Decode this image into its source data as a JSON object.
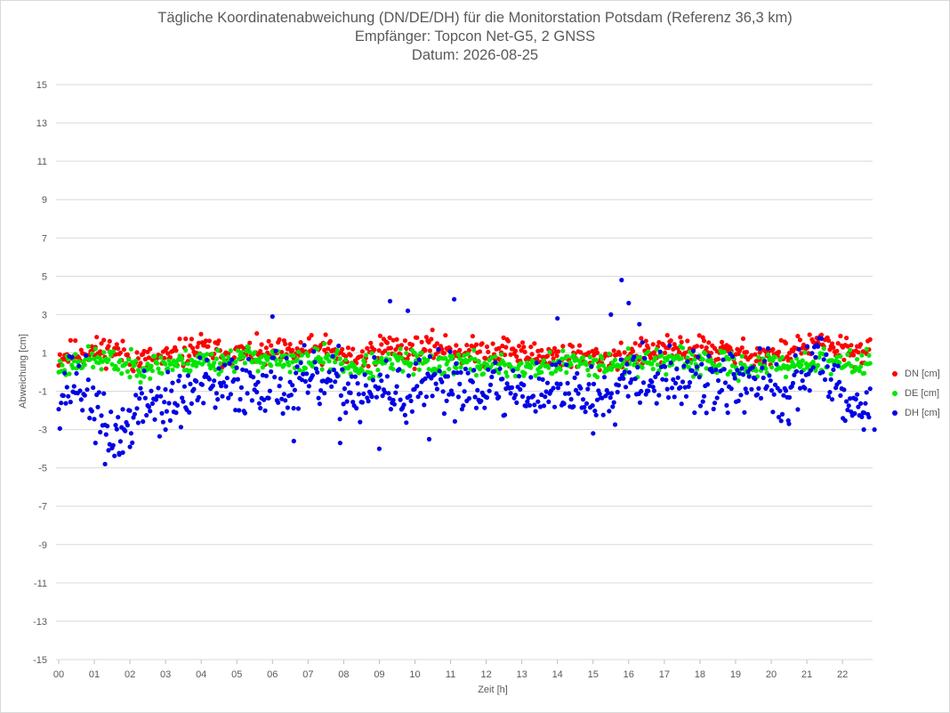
{
  "chart_data": {
    "type": "scatter",
    "title_lines": [
      "Tägliche Koordinatenabweichung (DN/DE/DH) für die Monitorstation Potsdam (Referenz 36,3 km)",
      "Empfänger: Topcon Net-G5, 2 GNSS",
      "Datum: 2026-08-25"
    ],
    "xlabel": "Zeit [h]",
    "ylabel": "Abweichung [cm]",
    "ylim": [
      -15,
      15
    ],
    "xlim": [
      0,
      22.8
    ],
    "y_ticks": [
      "15",
      "13",
      "11",
      "9",
      "7",
      "5",
      "3",
      "1",
      "-1",
      "-3",
      "-5",
      "-7",
      "-9",
      "-11",
      "-13",
      "-15"
    ],
    "x_ticks": [
      "00",
      "01",
      "02",
      "03",
      "04",
      "05",
      "06",
      "07",
      "08",
      "09",
      "10",
      "11",
      "12",
      "13",
      "14",
      "15",
      "16",
      "17",
      "18",
      "19",
      "20",
      "21",
      "22"
    ],
    "grid": true,
    "legend_position": "right",
    "sample_interval_h": 0.0333,
    "series": [
      {
        "name": "DN [cm]",
        "color": "#ff0000",
        "anchors": [
          [
            0.0,
            0.8
          ],
          [
            0.5,
            1.0
          ],
          [
            1.0,
            1.1
          ],
          [
            1.5,
            1.2
          ],
          [
            2.0,
            0.7
          ],
          [
            2.5,
            0.6
          ],
          [
            3.0,
            0.7
          ],
          [
            3.5,
            1.0
          ],
          [
            4.0,
            1.3
          ],
          [
            4.5,
            1.0
          ],
          [
            5.0,
            0.9
          ],
          [
            5.5,
            1.0
          ],
          [
            6.0,
            0.9
          ],
          [
            6.5,
            1.0
          ],
          [
            7.0,
            1.1
          ],
          [
            7.5,
            1.2
          ],
          [
            8.0,
            0.8
          ],
          [
            8.5,
            0.6
          ],
          [
            9.0,
            1.3
          ],
          [
            9.5,
            1.3
          ],
          [
            10.0,
            1.1
          ],
          [
            10.5,
            1.3
          ],
          [
            11.0,
            1.2
          ],
          [
            11.5,
            1.0
          ],
          [
            12.0,
            1.1
          ],
          [
            12.5,
            1.2
          ],
          [
            13.0,
            0.9
          ],
          [
            13.5,
            0.9
          ],
          [
            14.0,
            0.9
          ],
          [
            14.5,
            0.8
          ],
          [
            15.0,
            0.7
          ],
          [
            15.5,
            0.8
          ],
          [
            16.0,
            0.9
          ],
          [
            16.5,
            1.0
          ],
          [
            17.0,
            1.1
          ],
          [
            17.5,
            1.2
          ],
          [
            18.0,
            1.2
          ],
          [
            18.5,
            1.1
          ],
          [
            19.0,
            0.9
          ],
          [
            19.5,
            0.9
          ],
          [
            20.0,
            0.8
          ],
          [
            20.5,
            1.1
          ],
          [
            21.0,
            1.3
          ],
          [
            21.5,
            1.4
          ],
          [
            22.0,
            1.2
          ],
          [
            22.8,
            1.0
          ]
        ],
        "spread": 0.45,
        "seed": 11
      },
      {
        "name": "DE [cm]",
        "color": "#00e600",
        "anchors": [
          [
            0.0,
            0.2
          ],
          [
            0.5,
            0.6
          ],
          [
            1.0,
            0.7
          ],
          [
            1.5,
            0.5
          ],
          [
            2.0,
            0.3
          ],
          [
            2.5,
            0.3
          ],
          [
            3.0,
            0.4
          ],
          [
            3.5,
            0.5
          ],
          [
            4.0,
            0.6
          ],
          [
            4.5,
            0.6
          ],
          [
            5.0,
            0.7
          ],
          [
            5.5,
            0.8
          ],
          [
            6.0,
            0.6
          ],
          [
            6.5,
            0.4
          ],
          [
            7.0,
            0.6
          ],
          [
            7.5,
            0.7
          ],
          [
            8.0,
            0.4
          ],
          [
            8.5,
            0.2
          ],
          [
            9.0,
            0.3
          ],
          [
            9.5,
            0.6
          ],
          [
            10.0,
            0.5
          ],
          [
            10.5,
            0.4
          ],
          [
            11.0,
            0.5
          ],
          [
            11.5,
            0.5
          ],
          [
            12.0,
            0.3
          ],
          [
            12.5,
            0.3
          ],
          [
            13.0,
            0.2
          ],
          [
            13.5,
            0.3
          ],
          [
            14.0,
            0.4
          ],
          [
            14.5,
            0.5
          ],
          [
            15.0,
            0.5
          ],
          [
            15.5,
            0.4
          ],
          [
            16.0,
            0.5
          ],
          [
            16.5,
            0.6
          ],
          [
            17.0,
            0.6
          ],
          [
            17.5,
            0.5
          ],
          [
            18.0,
            0.5
          ],
          [
            18.5,
            0.4
          ],
          [
            19.0,
            0.3
          ],
          [
            19.5,
            0.2
          ],
          [
            20.0,
            0.3
          ],
          [
            20.5,
            0.4
          ],
          [
            21.0,
            0.5
          ],
          [
            21.5,
            0.5
          ],
          [
            22.0,
            0.4
          ],
          [
            22.8,
            0.5
          ]
        ],
        "spread": 0.4,
        "seed": 23
      },
      {
        "name": "DH [cm]",
        "color": "#0000e6",
        "anchors": [
          [
            0.0,
            -1.2
          ],
          [
            0.4,
            -0.4
          ],
          [
            0.8,
            -1.0
          ],
          [
            1.2,
            -2.8
          ],
          [
            1.5,
            -3.3
          ],
          [
            1.8,
            -3.0
          ],
          [
            2.1,
            -2.2
          ],
          [
            2.5,
            -1.5
          ],
          [
            3.0,
            -1.7
          ],
          [
            3.5,
            -1.4
          ],
          [
            4.0,
            -0.8
          ],
          [
            4.5,
            -1.0
          ],
          [
            5.0,
            -0.6
          ],
          [
            5.5,
            -0.6
          ],
          [
            6.0,
            -0.4
          ],
          [
            6.5,
            -0.9
          ],
          [
            7.0,
            -0.6
          ],
          [
            7.5,
            -0.7
          ],
          [
            8.0,
            -0.7
          ],
          [
            8.5,
            -1.2
          ],
          [
            9.0,
            -0.9
          ],
          [
            9.5,
            -1.2
          ],
          [
            10.0,
            -1.2
          ],
          [
            10.5,
            -0.8
          ],
          [
            11.0,
            -0.5
          ],
          [
            11.5,
            -0.6
          ],
          [
            12.0,
            -0.7
          ],
          [
            12.5,
            -1.0
          ],
          [
            13.0,
            -0.9
          ],
          [
            13.5,
            -1.0
          ],
          [
            14.0,
            -0.8
          ],
          [
            14.5,
            -1.0
          ],
          [
            15.0,
            -1.4
          ],
          [
            15.5,
            -0.8
          ],
          [
            16.0,
            0.2
          ],
          [
            16.5,
            -0.2
          ],
          [
            17.0,
            -0.4
          ],
          [
            17.5,
            -0.5
          ],
          [
            18.0,
            -0.6
          ],
          [
            18.5,
            -0.7
          ],
          [
            19.0,
            -0.6
          ],
          [
            19.5,
            -0.4
          ],
          [
            20.0,
            -0.6
          ],
          [
            20.3,
            -1.8
          ],
          [
            20.6,
            -0.8
          ],
          [
            21.0,
            0.3
          ],
          [
            21.5,
            0.6
          ],
          [
            22.0,
            -0.8
          ],
          [
            22.4,
            -2.0
          ],
          [
            22.8,
            -1.5
          ]
        ],
        "spread": 1.0,
        "seed": 37,
        "outliers": [
          [
            1.3,
            -4.8
          ],
          [
            1.7,
            -4.3
          ],
          [
            1.8,
            -4.2
          ],
          [
            2.0,
            -3.9
          ],
          [
            3.0,
            -3.0
          ],
          [
            6.0,
            2.9
          ],
          [
            6.6,
            -3.6
          ],
          [
            7.9,
            -3.7
          ],
          [
            9.0,
            -4.0
          ],
          [
            9.3,
            3.7
          ],
          [
            9.8,
            3.2
          ],
          [
            10.4,
            -3.5
          ],
          [
            11.1,
            3.8
          ],
          [
            15.0,
            -3.2
          ],
          [
            15.8,
            4.8
          ],
          [
            16.0,
            3.6
          ],
          [
            16.3,
            2.5
          ],
          [
            15.5,
            3.0
          ],
          [
            20.5,
            -2.7
          ],
          [
            22.6,
            -3.0
          ],
          [
            22.9,
            -3.0
          ],
          [
            14.0,
            2.8
          ]
        ]
      }
    ]
  }
}
